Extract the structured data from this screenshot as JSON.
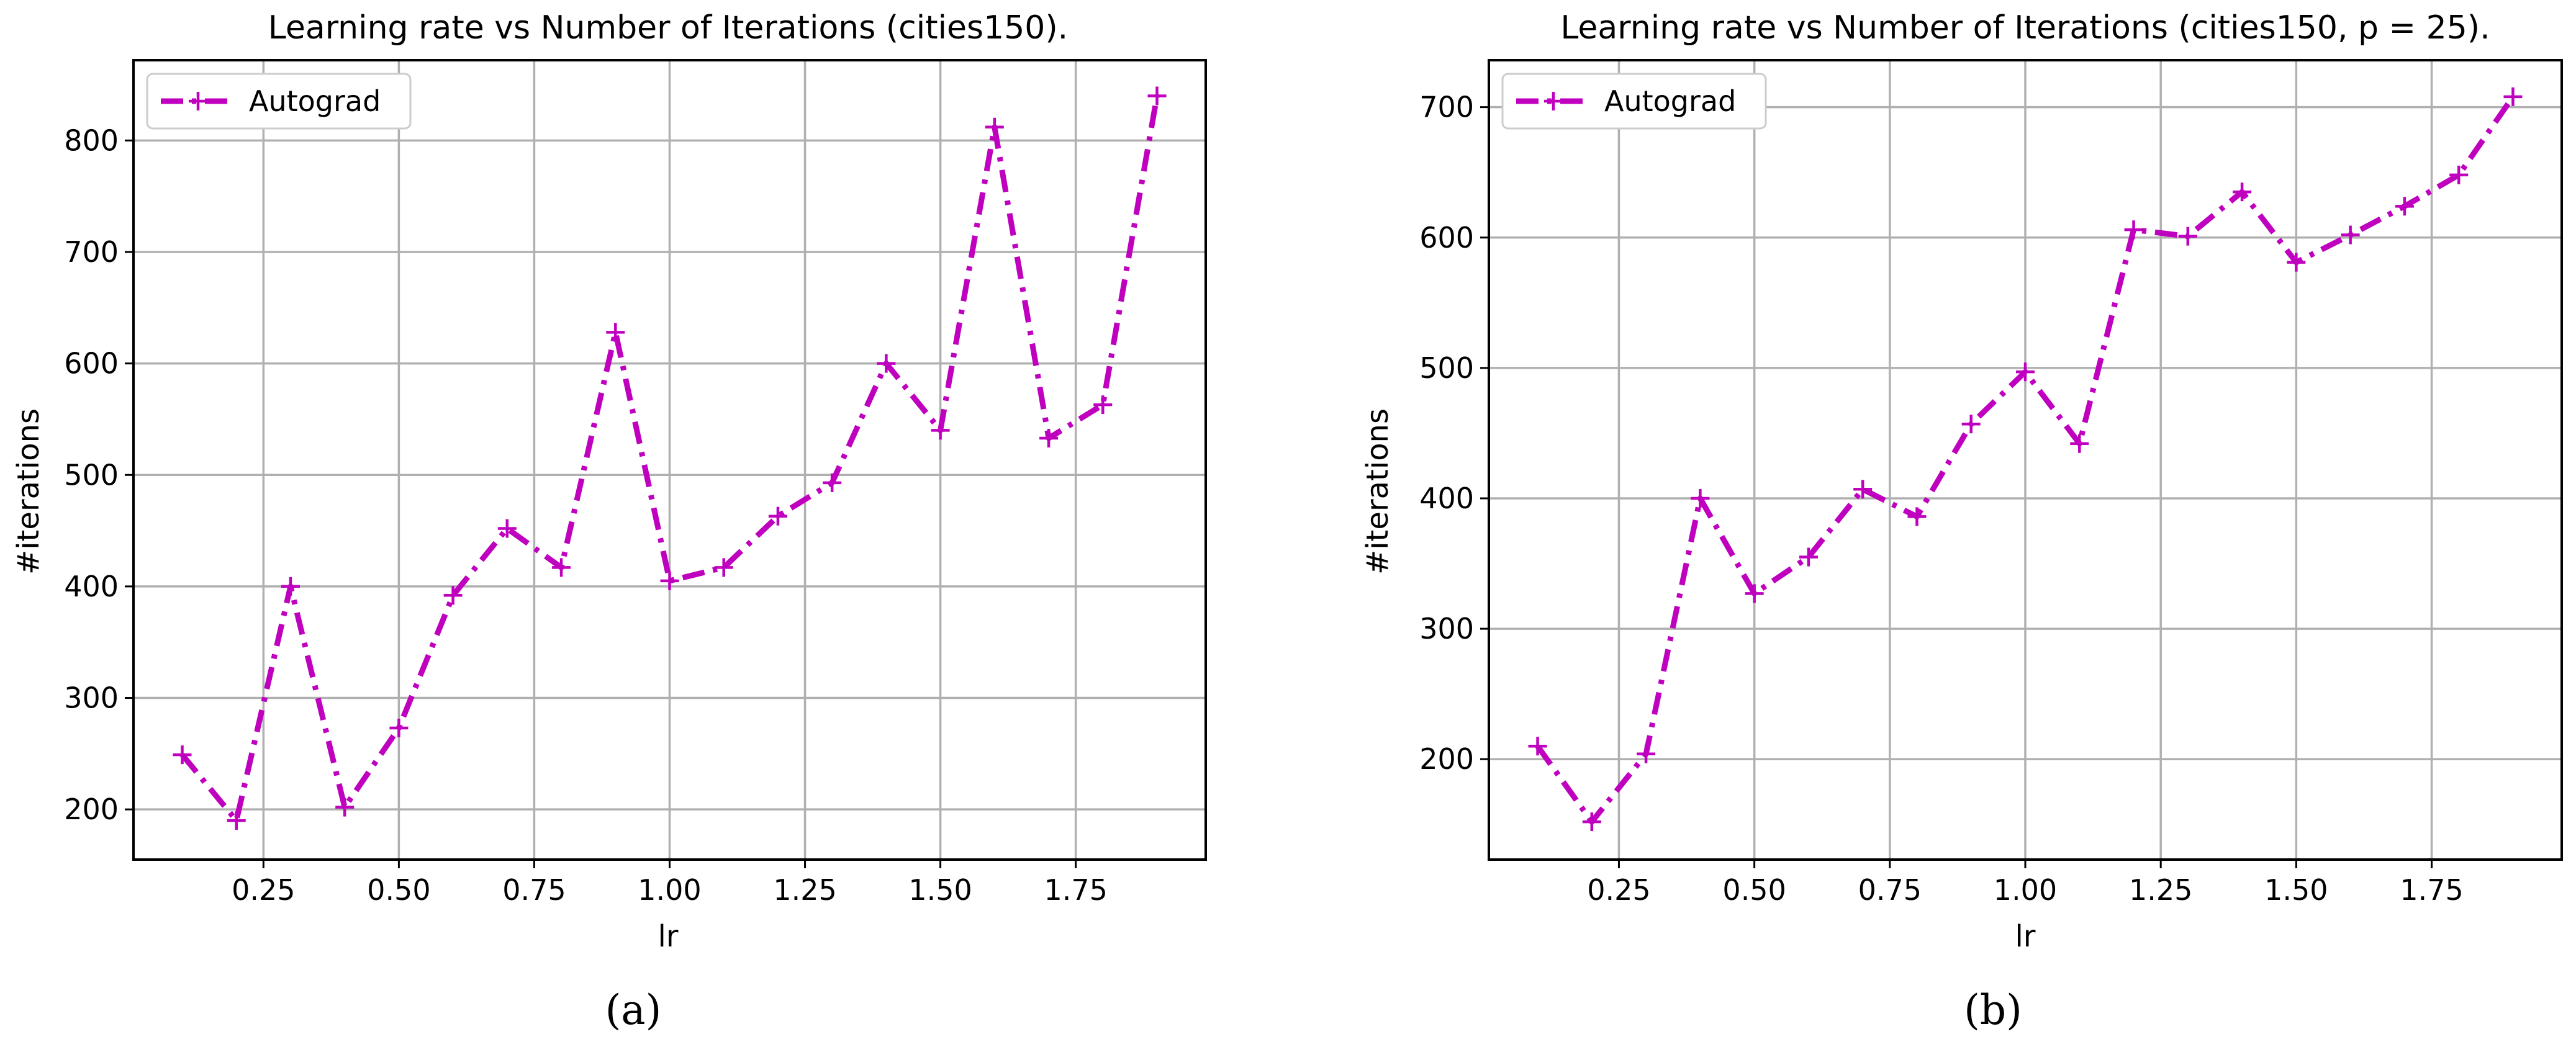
{
  "chart_data": [
    {
      "type": "line",
      "title": "Learning rate vs Number of Iterations (cities150).",
      "xlabel": "lr",
      "ylabel": "#iterations",
      "xlim": [
        0.01,
        1.99
      ],
      "ylim": [
        155,
        872
      ],
      "xticks": [
        0.25,
        0.5,
        0.75,
        1.0,
        1.25,
        1.5,
        1.75
      ],
      "xtick_labels": [
        "0.25",
        "0.50",
        "0.75",
        "1.00",
        "1.25",
        "1.50",
        "1.75"
      ],
      "yticks": [
        200,
        300,
        400,
        500,
        600,
        700,
        800
      ],
      "ytick_labels": [
        "200",
        "300",
        "400",
        "500",
        "600",
        "700",
        "800"
      ],
      "grid": true,
      "legend_position": "top-left",
      "series": [
        {
          "name": "Autograd",
          "color": "#bf00bf",
          "linestyle": "dashdot",
          "marker": "plus",
          "x": [
            0.1,
            0.2,
            0.3,
            0.4,
            0.5,
            0.6,
            0.7,
            0.8,
            0.9,
            1.0,
            1.1,
            1.2,
            1.3,
            1.4,
            1.5,
            1.6,
            1.7,
            1.8,
            1.9
          ],
          "y": [
            249,
            190,
            400,
            202,
            273,
            392,
            452,
            417,
            628,
            405,
            417,
            463,
            493,
            600,
            540,
            812,
            533,
            563,
            840
          ]
        }
      ],
      "caption": "(a)"
    },
    {
      "type": "line",
      "title": "Learning rate vs Number of Iterations (cities150, p = 25).",
      "xlabel": "lr",
      "ylabel": "#iterations",
      "xlim": [
        0.01,
        1.99
      ],
      "ylim": [
        123,
        736
      ],
      "xticks": [
        0.25,
        0.5,
        0.75,
        1.0,
        1.25,
        1.5,
        1.75
      ],
      "xtick_labels": [
        "0.25",
        "0.50",
        "0.75",
        "1.00",
        "1.25",
        "1.50",
        "1.75"
      ],
      "yticks": [
        200,
        300,
        400,
        500,
        600,
        700
      ],
      "ytick_labels": [
        "200",
        "300",
        "400",
        "500",
        "600",
        "700"
      ],
      "grid": true,
      "legend_position": "top-left",
      "series": [
        {
          "name": "Autograd",
          "color": "#bf00bf",
          "linestyle": "dashdot",
          "marker": "plus",
          "x": [
            0.1,
            0.2,
            0.3,
            0.4,
            0.5,
            0.6,
            0.7,
            0.8,
            0.9,
            1.0,
            1.1,
            1.2,
            1.3,
            1.4,
            1.5,
            1.6,
            1.7,
            1.8,
            1.9
          ],
          "y": [
            210,
            152,
            204,
            400,
            327,
            355,
            407,
            386,
            457,
            497,
            442,
            606,
            601,
            635,
            581,
            602,
            624,
            648,
            708
          ]
        }
      ],
      "caption": "(b)"
    }
  ]
}
